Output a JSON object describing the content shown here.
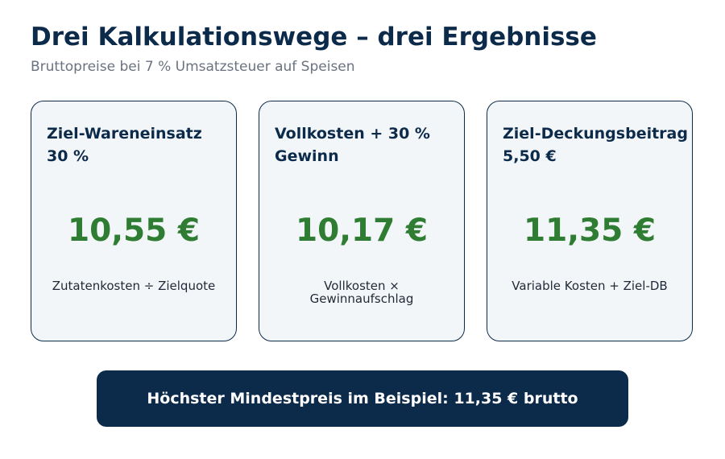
{
  "title": "Drei Kalkulationswege – drei Ergebnisse",
  "subtitle": "Bruttopreise bei 7 % Umsatzsteuer auf Speisen",
  "cards": [
    {
      "heading": "Ziel-Wareneinsatz\n30 %",
      "value": "10,55 €",
      "note": "Zutatenkosten ÷ Zielquote"
    },
    {
      "heading": "Vollkosten + 30 %\nGewinn",
      "value": "10,17 €",
      "note": "Vollkosten ×\nGewinnaufschlag"
    },
    {
      "heading": "Ziel-Deckungsbeitrag\n5,50 €",
      "value": "11,35 €",
      "note": "Variable Kosten + Ziel-DB"
    }
  ],
  "banner": {
    "text": "Höchster Mindestpreis im Beispiel: 11,35 € brutto"
  },
  "colors": {
    "navy": "#0c2a4a",
    "value_green": "#2e7d32",
    "card_background": "#f3f6f8",
    "subtitle_gray": "#6b7280"
  }
}
